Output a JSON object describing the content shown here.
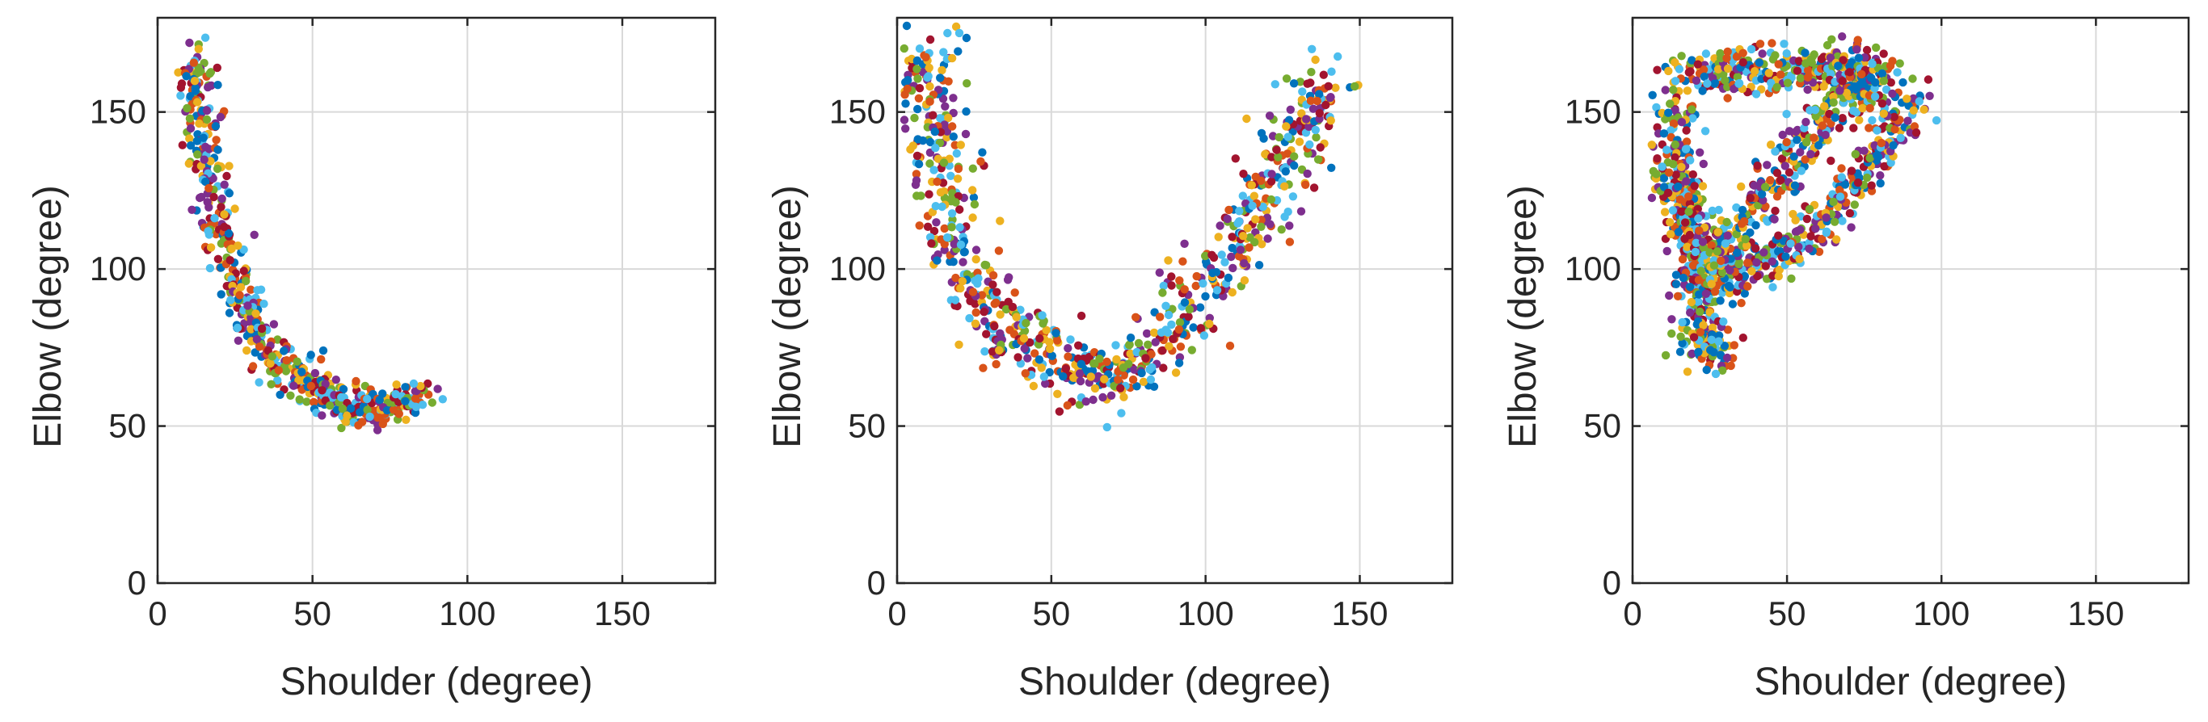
{
  "chart_data": [
    {
      "type": "scatter",
      "xlabel": "Shoulder (degree)",
      "ylabel": "Elbow (degree)",
      "xlim": [
        0,
        180
      ],
      "ylim": [
        0,
        180
      ],
      "xticks": [
        0,
        50,
        100,
        150
      ],
      "yticks": [
        0,
        50,
        100,
        150
      ],
      "grid": true,
      "colors": [
        "#0072BD",
        "#D95319",
        "#EDB120",
        "#7E2F8E",
        "#77AC30",
        "#4DBEEE",
        "#A2142F"
      ],
      "trajectories": [
        {
          "x": [
            12,
            13,
            15,
            18,
            22,
            27,
            33,
            40,
            48,
            55,
            62,
            70,
            78,
            85
          ],
          "y": [
            167,
            155,
            140,
            122,
            105,
            90,
            79,
            70,
            64,
            59,
            56,
            55,
            57,
            60
          ]
        }
      ],
      "spread": 3.2
    },
    {
      "type": "scatter",
      "xlabel": "Shoulder (degree)",
      "ylabel": "Elbow (degree)",
      "xlim": [
        0,
        180
      ],
      "ylim": [
        0,
        180
      ],
      "xticks": [
        0,
        50,
        100,
        150
      ],
      "yticks": [
        0,
        50,
        100,
        150
      ],
      "grid": true,
      "colors": [
        "#0072BD",
        "#D95319",
        "#EDB120",
        "#7E2F8E",
        "#77AC30",
        "#4DBEEE",
        "#A2142F"
      ],
      "trajectories": [
        {
          "x": [
            11,
            12,
            13,
            15,
            18,
            24,
            32,
            42,
            52,
            62,
            72,
            82,
            92,
            102,
            112,
            120,
            127,
            133,
            140
          ],
          "y": [
            170,
            158,
            143,
            127,
            110,
            95,
            84,
            76,
            70,
            66,
            66,
            72,
            83,
            97,
            110,
            123,
            138,
            150,
            160
          ]
        }
      ],
      "spread": 5.5
    },
    {
      "type": "scatter",
      "xlabel": "Shoulder (degree)",
      "ylabel": "Elbow (degree)",
      "xlim": [
        0,
        180
      ],
      "ylim": [
        0,
        180
      ],
      "xticks": [
        0,
        50,
        100,
        150
      ],
      "yticks": [
        0,
        50,
        100,
        150
      ],
      "grid": true,
      "colors": [
        "#0072BD",
        "#D95319",
        "#EDB120",
        "#7E2F8E",
        "#77AC30",
        "#4DBEEE",
        "#A2142F"
      ],
      "trajectories": [
        {
          "x": [
            15,
            25,
            35,
            45,
            55,
            65,
            72,
            78
          ],
          "y": [
            162,
            163,
            163,
            162,
            163,
            165,
            164,
            162
          ]
        },
        {
          "x": [
            14,
            15,
            17,
            19,
            21,
            23
          ],
          "y": [
            155,
            140,
            125,
            110,
            97,
            85
          ]
        },
        {
          "x": [
            22,
            30,
            40,
            50,
            60,
            70,
            78,
            85,
            91
          ],
          "y": [
            92,
            96,
            101,
            106,
            113,
            124,
            135,
            146,
            155
          ]
        },
        {
          "x": [
            25,
            33,
            41,
            50,
            58,
            66,
            74,
            80
          ],
          "y": [
            98,
            110,
            122,
            133,
            143,
            151,
            157,
            160
          ]
        },
        {
          "x": [
            20,
            24,
            28
          ],
          "y": [
            82,
            76,
            72
          ]
        },
        {
          "x": [
            12,
            15,
            19,
            24,
            30
          ],
          "y": [
            130,
            122,
            116,
            108,
            100
          ]
        }
      ],
      "spread": 3.6
    }
  ]
}
